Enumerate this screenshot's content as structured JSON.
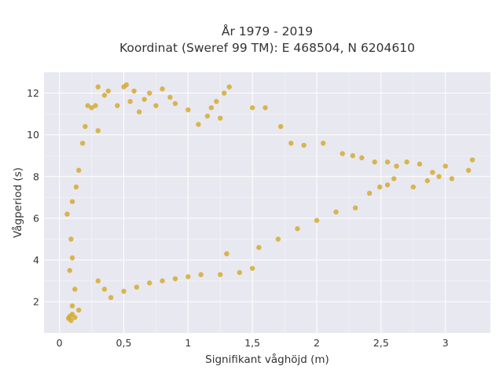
{
  "chart_data": {
    "type": "scatter",
    "title_lines": [
      "År 1979 - 2019",
      "Koordinat (Sweref 99 TM): E 468504, N 6204610"
    ],
    "xlabel": "Signifikant våghöjd (m)",
    "ylabel": "Vågperiod (s)",
    "xlim": [
      -0.12,
      3.35
    ],
    "ylim": [
      0.5,
      13.0
    ],
    "x_ticks": [
      0,
      0.5,
      1,
      1.5,
      2,
      2.5,
      3
    ],
    "x_tick_labels": [
      "0",
      "0,5",
      "1",
      "1,5",
      "2",
      "2,5",
      "3"
    ],
    "y_ticks": [
      2,
      4,
      6,
      8,
      10,
      12
    ],
    "y_tick_labels": [
      "2",
      "4",
      "6",
      "8",
      "10",
      "12"
    ],
    "grid": true,
    "colors": {
      "plot_bg": "#e8e8f0",
      "marker": "#d4a520",
      "text": "#333333"
    },
    "marker_opacity": 0.78,
    "series": [
      {
        "points": [
          [
            0.07,
            1.2
          ],
          [
            0.08,
            1.3
          ],
          [
            0.09,
            1.1
          ],
          [
            0.1,
            1.4
          ],
          [
            0.12,
            1.25
          ],
          [
            0.1,
            1.8
          ],
          [
            0.15,
            1.6
          ],
          [
            0.12,
            2.6
          ],
          [
            0.08,
            3.5
          ],
          [
            0.1,
            4.1
          ],
          [
            0.09,
            5.0
          ],
          [
            0.06,
            6.2
          ],
          [
            0.1,
            6.8
          ],
          [
            0.13,
            7.5
          ],
          [
            0.15,
            8.3
          ],
          [
            0.18,
            9.6
          ],
          [
            0.2,
            10.4
          ],
          [
            0.22,
            11.4
          ],
          [
            0.25,
            11.3
          ],
          [
            0.28,
            11.4
          ],
          [
            0.3,
            10.2
          ],
          [
            0.35,
            11.9
          ],
          [
            0.45,
            11.4
          ],
          [
            0.5,
            12.3
          ],
          [
            0.55,
            11.6
          ],
          [
            0.58,
            12.1
          ],
          [
            0.62,
            11.1
          ],
          [
            0.66,
            11.7
          ],
          [
            0.7,
            12.0
          ],
          [
            0.75,
            11.4
          ],
          [
            0.8,
            12.2
          ],
          [
            0.86,
            11.8
          ],
          [
            0.9,
            11.5
          ],
          [
            0.3,
            12.3
          ],
          [
            0.38,
            12.1
          ],
          [
            0.52,
            12.4
          ],
          [
            1.0,
            11.2
          ],
          [
            1.08,
            10.5
          ],
          [
            1.15,
            10.9
          ],
          [
            1.22,
            11.6
          ],
          [
            1.28,
            12.0
          ],
          [
            1.32,
            12.3
          ],
          [
            1.18,
            11.3
          ],
          [
            1.25,
            10.8
          ],
          [
            1.5,
            11.3
          ],
          [
            1.6,
            11.3
          ],
          [
            1.72,
            10.4
          ],
          [
            1.8,
            9.6
          ],
          [
            1.9,
            9.5
          ],
          [
            2.05,
            9.6
          ],
          [
            2.2,
            9.1
          ],
          [
            2.28,
            9.0
          ],
          [
            2.35,
            8.9
          ],
          [
            2.45,
            8.7
          ],
          [
            2.55,
            8.7
          ],
          [
            2.62,
            8.5
          ],
          [
            2.7,
            8.7
          ],
          [
            2.8,
            8.6
          ],
          [
            2.9,
            8.2
          ],
          [
            2.95,
            8.0
          ],
          [
            3.0,
            8.5
          ],
          [
            3.05,
            7.9
          ],
          [
            3.18,
            8.3
          ],
          [
            3.21,
            8.8
          ],
          [
            2.86,
            7.8
          ],
          [
            2.75,
            7.5
          ],
          [
            2.6,
            7.9
          ],
          [
            2.55,
            7.6
          ],
          [
            2.49,
            7.5
          ],
          [
            2.41,
            7.2
          ],
          [
            0.3,
            3.0
          ],
          [
            0.35,
            2.6
          ],
          [
            0.4,
            2.2
          ],
          [
            0.5,
            2.5
          ],
          [
            0.6,
            2.7
          ],
          [
            0.7,
            2.9
          ],
          [
            0.8,
            3.0
          ],
          [
            0.9,
            3.1
          ],
          [
            1.0,
            3.2
          ],
          [
            1.1,
            3.3
          ],
          [
            1.25,
            3.3
          ],
          [
            1.4,
            3.4
          ],
          [
            1.5,
            3.6
          ],
          [
            1.3,
            4.3
          ],
          [
            1.55,
            4.6
          ],
          [
            1.7,
            5.0
          ],
          [
            1.85,
            5.5
          ],
          [
            2.0,
            5.9
          ],
          [
            2.15,
            6.3
          ],
          [
            2.3,
            6.5
          ]
        ]
      }
    ]
  }
}
